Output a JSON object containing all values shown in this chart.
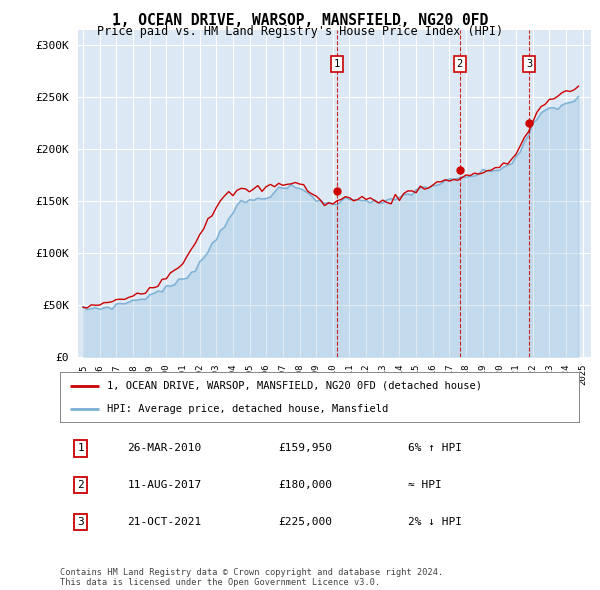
{
  "title": "1, OCEAN DRIVE, WARSOP, MANSFIELD, NG20 0FD",
  "subtitle": "Price paid vs. HM Land Registry's House Price Index (HPI)",
  "ytick_values": [
    0,
    50000,
    100000,
    150000,
    200000,
    250000,
    300000
  ],
  "ylim": [
    0,
    315000
  ],
  "xlim_start": 1994.7,
  "xlim_end": 2025.5,
  "background_color": "#ffffff",
  "plot_bg_color": "#dce9f5",
  "grid_color": "#ffffff",
  "sale_color": "#cc0000",
  "hpi_color": "#7bafd4",
  "sale_label": "1, OCEAN DRIVE, WARSOP, MANSFIELD, NG20 0FD (detached house)",
  "hpi_label": "HPI: Average price, detached house, Mansfield",
  "transactions": [
    {
      "num": 1,
      "date": "26-MAR-2010",
      "price": 159950,
      "rel": "6% ↑ HPI",
      "x": 2010.23
    },
    {
      "num": 2,
      "date": "11-AUG-2017",
      "price": 180000,
      "rel": "≈ HPI",
      "x": 2017.62
    },
    {
      "num": 3,
      "date": "21-OCT-2021",
      "price": 225000,
      "rel": "2% ↓ HPI",
      "x": 2021.8
    }
  ],
  "footer": "Contains HM Land Registry data © Crown copyright and database right 2024.\nThis data is licensed under the Open Government Licence v3.0.",
  "hpi_data_x": [
    1995.0,
    1995.25,
    1995.5,
    1995.75,
    1996.0,
    1996.25,
    1996.5,
    1996.75,
    1997.0,
    1997.25,
    1997.5,
    1997.75,
    1998.0,
    1998.25,
    1998.5,
    1998.75,
    1999.0,
    1999.25,
    1999.5,
    1999.75,
    2000.0,
    2000.25,
    2000.5,
    2000.75,
    2001.0,
    2001.25,
    2001.5,
    2001.75,
    2002.0,
    2002.25,
    2002.5,
    2002.75,
    2003.0,
    2003.25,
    2003.5,
    2003.75,
    2004.0,
    2004.25,
    2004.5,
    2004.75,
    2005.0,
    2005.25,
    2005.5,
    2005.75,
    2006.0,
    2006.25,
    2006.5,
    2006.75,
    2007.0,
    2007.25,
    2007.5,
    2007.75,
    2008.0,
    2008.25,
    2008.5,
    2008.75,
    2009.0,
    2009.25,
    2009.5,
    2009.75,
    2010.0,
    2010.25,
    2010.5,
    2010.75,
    2011.0,
    2011.25,
    2011.5,
    2011.75,
    2012.0,
    2012.25,
    2012.5,
    2012.75,
    2013.0,
    2013.25,
    2013.5,
    2013.75,
    2014.0,
    2014.25,
    2014.5,
    2014.75,
    2015.0,
    2015.25,
    2015.5,
    2015.75,
    2016.0,
    2016.25,
    2016.5,
    2016.75,
    2017.0,
    2017.25,
    2017.5,
    2017.75,
    2018.0,
    2018.25,
    2018.5,
    2018.75,
    2019.0,
    2019.25,
    2019.5,
    2019.75,
    2020.0,
    2020.25,
    2020.5,
    2020.75,
    2021.0,
    2021.25,
    2021.5,
    2021.75,
    2022.0,
    2022.25,
    2022.5,
    2022.75,
    2023.0,
    2023.25,
    2023.5,
    2023.75,
    2024.0,
    2024.25,
    2024.5,
    2024.75
  ],
  "hpi_data_y": [
    46000,
    46200,
    46500,
    46800,
    47000,
    47300,
    48000,
    48500,
    49500,
    50500,
    52000,
    53000,
    54000,
    55000,
    56000,
    57500,
    59000,
    61000,
    63000,
    65000,
    66000,
    68000,
    70000,
    72000,
    75000,
    78000,
    82000,
    86000,
    90000,
    96000,
    102000,
    108000,
    115000,
    121000,
    128000,
    134000,
    140000,
    144000,
    148000,
    149000,
    150000,
    151000,
    152000,
    153000,
    155000,
    156500,
    158000,
    160000,
    162000,
    163000,
    163000,
    162500,
    162000,
    160000,
    158000,
    155000,
    152000,
    150000,
    148000,
    147000,
    148000,
    149000,
    150000,
    151000,
    152000,
    152500,
    153000,
    152000,
    151000,
    150000,
    149000,
    148500,
    148000,
    149000,
    150000,
    151500,
    153000,
    155000,
    157000,
    158500,
    160000,
    161500,
    163000,
    164000,
    165000,
    166000,
    167000,
    168000,
    169000,
    170000,
    171000,
    172000,
    173000,
    174000,
    175000,
    176000,
    177000,
    178000,
    179000,
    180000,
    181000,
    182000,
    184000,
    188000,
    192000,
    198000,
    205000,
    213000,
    222000,
    229000,
    235000,
    237000,
    238000,
    239000,
    240000,
    242000,
    244000,
    245500,
    247000,
    248000
  ],
  "sale_data_x": [
    1995.0,
    1995.25,
    1995.5,
    1995.75,
    1996.0,
    1996.25,
    1996.5,
    1996.75,
    1997.0,
    1997.25,
    1997.5,
    1997.75,
    1998.0,
    1998.25,
    1998.5,
    1998.75,
    1999.0,
    1999.25,
    1999.5,
    1999.75,
    2000.0,
    2000.25,
    2000.5,
    2000.75,
    2001.0,
    2001.25,
    2001.5,
    2001.75,
    2002.0,
    2002.25,
    2002.5,
    2002.75,
    2003.0,
    2003.25,
    2003.5,
    2003.75,
    2004.0,
    2004.25,
    2004.5,
    2004.75,
    2005.0,
    2005.25,
    2005.5,
    2005.75,
    2006.0,
    2006.25,
    2006.5,
    2006.75,
    2007.0,
    2007.25,
    2007.5,
    2007.75,
    2008.0,
    2008.25,
    2008.5,
    2008.75,
    2009.0,
    2009.25,
    2009.5,
    2009.75,
    2010.0,
    2010.25,
    2010.5,
    2010.75,
    2011.0,
    2011.25,
    2011.5,
    2011.75,
    2012.0,
    2012.25,
    2012.5,
    2012.75,
    2013.0,
    2013.25,
    2013.5,
    2013.75,
    2014.0,
    2014.25,
    2014.5,
    2014.75,
    2015.0,
    2015.25,
    2015.5,
    2015.75,
    2016.0,
    2016.25,
    2016.5,
    2016.75,
    2017.0,
    2017.25,
    2017.5,
    2017.75,
    2018.0,
    2018.25,
    2018.5,
    2018.75,
    2019.0,
    2019.25,
    2019.5,
    2019.75,
    2020.0,
    2020.25,
    2020.5,
    2020.75,
    2021.0,
    2021.25,
    2021.5,
    2021.75,
    2022.0,
    2022.25,
    2022.5,
    2022.75,
    2023.0,
    2023.25,
    2023.5,
    2023.75,
    2024.0,
    2024.25,
    2024.5,
    2024.75
  ],
  "sale_data_y": [
    48500,
    48700,
    49000,
    49500,
    50000,
    50800,
    51500,
    52500,
    53500,
    55000,
    56500,
    58000,
    59500,
    61000,
    62500,
    64500,
    66500,
    69000,
    71500,
    74000,
    76500,
    80000,
    84500,
    88000,
    92000,
    98000,
    104000,
    111000,
    118000,
    126000,
    133000,
    139000,
    144000,
    149000,
    153000,
    156000,
    158000,
    159000,
    160000,
    160000,
    160500,
    161000,
    161500,
    162000,
    163000,
    164000,
    165000,
    166000,
    167000,
    167500,
    168000,
    167500,
    166500,
    164000,
    161000,
    157000,
    153000,
    150000,
    148000,
    147000,
    148000,
    149500,
    151000,
    152000,
    153000,
    153500,
    154000,
    153000,
    152000,
    151000,
    150000,
    149500,
    149000,
    150000,
    151000,
    152500,
    154000,
    156000,
    158000,
    159500,
    161000,
    162500,
    164000,
    165000,
    166000,
    167000,
    168000,
    169000,
    170000,
    171000,
    172000,
    173000,
    174000,
    175000,
    176000,
    177000,
    178000,
    179000,
    180000,
    181000,
    182000,
    183500,
    186000,
    191000,
    197000,
    203000,
    210000,
    218000,
    226000,
    234000,
    241000,
    244000,
    246000,
    248000,
    250000,
    252000,
    254000,
    256000,
    258000,
    260000
  ]
}
